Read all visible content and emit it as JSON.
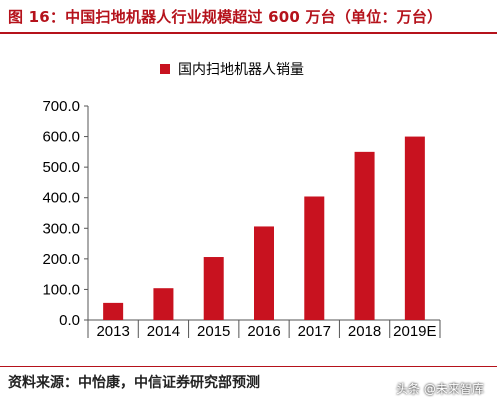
{
  "figure_title": "图 16：中国扫地机器人行业规模超过 600 万台（单位：万台）",
  "source_note": "资料来源：中怡康，中信证券研究部预测",
  "watermark": "头条 @未来智库",
  "colors": {
    "bar": "#c8121f",
    "accent": "#b5121b",
    "axis": "#555555"
  },
  "chart_data": {
    "type": "bar",
    "title": "",
    "xlabel": "",
    "ylabel": "",
    "categories": [
      "2013",
      "2014",
      "2015",
      "2016",
      "2017",
      "2018",
      "2019E"
    ],
    "series": [
      {
        "name": "国内扫地机器人销量",
        "values": [
          56,
          104,
          206,
          306,
          404,
          550,
          600
        ]
      }
    ],
    "ylim": [
      0,
      700
    ],
    "yticks": [
      0,
      100,
      200,
      300,
      400,
      500,
      600,
      700
    ],
    "ytick_labels": [
      "0.0",
      "100.0",
      "200.0",
      "300.0",
      "400.0",
      "500.0",
      "600.0",
      "700.0"
    ],
    "legend_position": "top",
    "grid": false
  }
}
